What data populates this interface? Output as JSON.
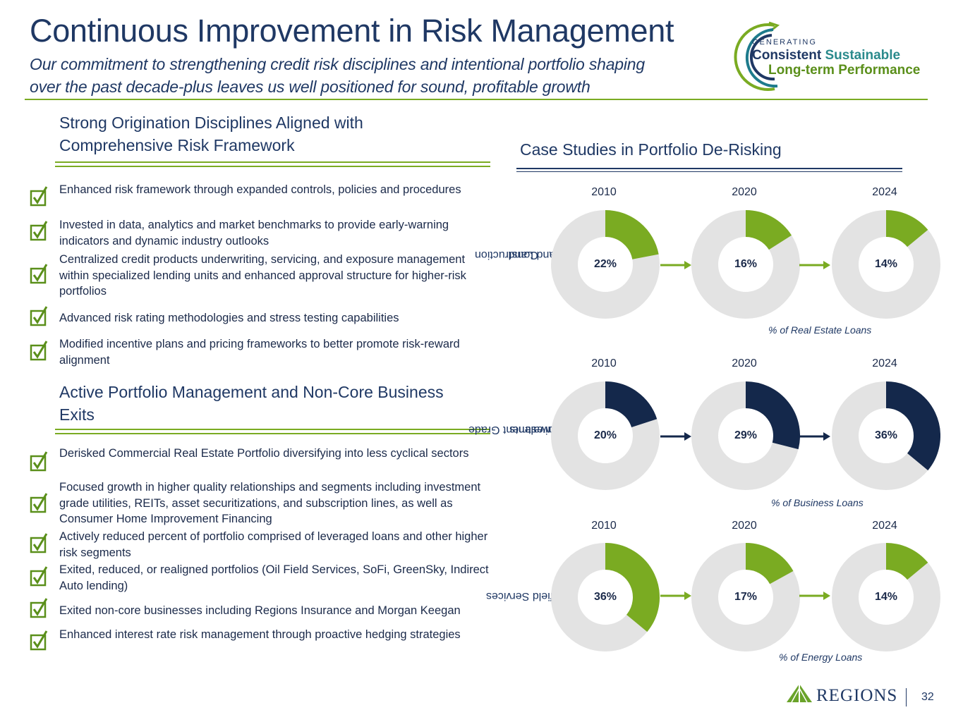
{
  "header": {
    "title": "Continuous Improvement in Risk Management",
    "subtitle_line1": "Our commitment to strengthening credit risk disciplines and intentional portfolio shaping",
    "subtitle_line2": "over the past decade-plus leaves us well positioned for sound, profitable growth"
  },
  "badge": {
    "line1": "GENERATING",
    "word_consistent": "Consistent",
    "word_sustainable": "Sustainable",
    "line3": "Long-term Performance"
  },
  "section1": {
    "heading_line1": "Strong Origination Disciplines Aligned with",
    "heading_line2": "Comprehensive Risk Framework",
    "bullets": [
      "Enhanced risk framework through expanded controls, policies and procedures",
      "Invested in data, analytics and market benchmarks to provide early-warning indicators and dynamic industry outlooks",
      "Centralized credit products underwriting, servicing, and exposure management within specialized lending units and enhanced approval structure for higher-risk portfolios",
      "Advanced risk rating methodologies and stress testing capabilities",
      "Modified incentive plans and pricing frameworks to better promote risk-reward alignment"
    ]
  },
  "section2": {
    "heading_line1": "Active Portfolio Management and Non-Core Business",
    "heading_line2": "Exits",
    "bullets": [
      "Derisked Commercial Real Estate Portfolio diversifying into less cyclical sectors",
      "Focused growth in higher quality relationships and segments including investment grade utilities, REITs, asset securitizations, and subscription lines, as well as Consumer Home Improvement Financing",
      "Actively reduced percent of portfolio comprised of leveraged loans and other higher risk segments",
      "Exited, reduced, or realigned portfolios (Oil Field Services, SoFi, GreenSky, Indirect Auto lending)",
      "Exited non-core businesses including Regions Insurance and Morgan Keegan",
      "Enhanced interest rate risk management through proactive hedging strategies"
    ]
  },
  "case_studies": {
    "heading": "Case Studies in Portfolio De-Risking"
  },
  "colors": {
    "green": "#7aab22",
    "navy": "#14284b",
    "ring_track": "#e3e3e3",
    "title_blue": "#1f3864"
  },
  "chart_data": [
    {
      "type": "pie",
      "row_label_line1": "Construction",
      "row_label_line2": "and Land",
      "categories": [
        "2010",
        "2020",
        "2024"
      ],
      "values": [
        22,
        16,
        14
      ],
      "labels": [
        "22%",
        "16%",
        "14%"
      ],
      "footnote": "% of Real Estate Loans",
      "color": "#7aab22"
    },
    {
      "type": "pie",
      "row_label_line1": "Investment Grade",
      "row_label_line2": "Equivalents",
      "categories": [
        "2010",
        "2020",
        "2024"
      ],
      "values": [
        20,
        29,
        36
      ],
      "labels": [
        "20%",
        "29%",
        "36%"
      ],
      "footnote": "% of Business Loans",
      "color": "#14284b"
    },
    {
      "type": "pie",
      "row_label_line1": "Oilfield Services",
      "row_label_line2": "",
      "categories": [
        "2010",
        "2020",
        "2024"
      ],
      "values": [
        36,
        17,
        14
      ],
      "labels": [
        "36%",
        "17%",
        "14%"
      ],
      "footnote": "% of Energy Loans",
      "color": "#7aab22"
    }
  ],
  "footer": {
    "brand": "REGIONS",
    "page_number": "32"
  }
}
